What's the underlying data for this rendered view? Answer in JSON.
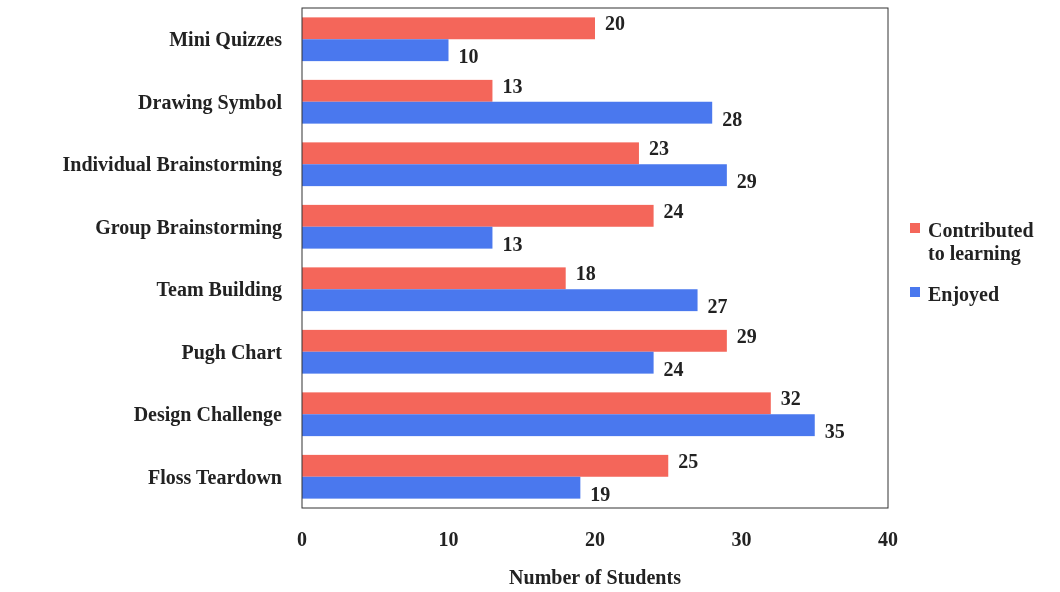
{
  "chart_data": {
    "type": "bar",
    "orientation": "horizontal",
    "xlabel": "Number of Students",
    "categories": [
      "Mini Quizzes",
      "Drawing Symbol",
      "Individual Brainstorming",
      "Group Brainstorming",
      "Team Building",
      "Pugh Chart",
      "Design Challenge",
      "Floss Teardown"
    ],
    "series": [
      {
        "name": "Contributed to learning",
        "color": "#f4665a",
        "values": [
          20,
          13,
          23,
          24,
          18,
          29,
          32,
          25
        ]
      },
      {
        "name": "Enjoyed",
        "color": "#4a78ee",
        "values": [
          10,
          28,
          29,
          13,
          27,
          24,
          35,
          19
        ]
      }
    ],
    "xlim": [
      0,
      40
    ],
    "xticks": [
      0,
      10,
      20,
      30,
      40
    ],
    "data_labels": true,
    "grid": false,
    "legend": "right"
  }
}
